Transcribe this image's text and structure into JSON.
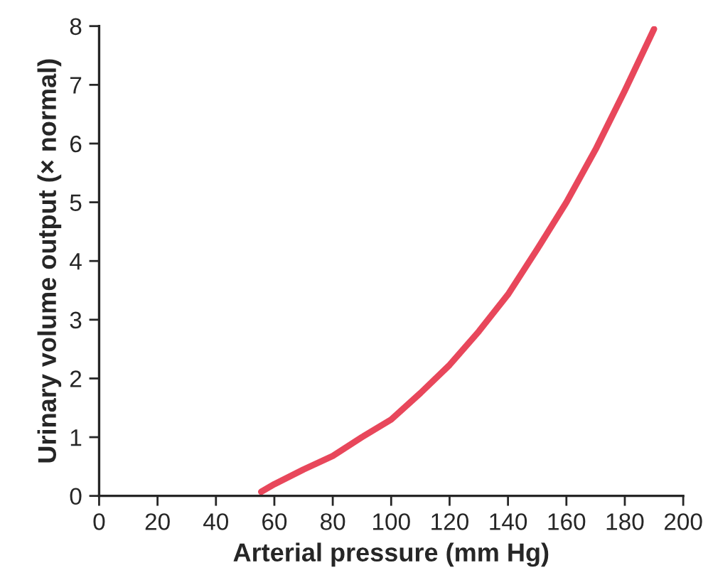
{
  "chart_data": {
    "type": "line",
    "xlabel": "Arterial pressure (mm Hg)",
    "ylabel": "Urinary volume output (× normal)",
    "x": [
      55.5,
      60,
      70,
      80,
      90,
      100,
      110,
      120,
      130,
      140,
      150,
      160,
      170,
      180,
      190
    ],
    "series": [
      {
        "color": "#e8475b",
        "values": [
          0.07,
          0.2,
          0.45,
          0.68,
          1.0,
          1.3,
          1.75,
          2.23,
          2.8,
          3.43,
          4.2,
          5.0,
          5.9,
          6.9,
          7.95
        ]
      }
    ],
    "xlim": [
      0,
      200
    ],
    "xticks": [
      0,
      20,
      40,
      60,
      80,
      100,
      120,
      140,
      160,
      180,
      200
    ],
    "ylim": [
      0,
      8
    ],
    "yticks": [
      0,
      1,
      2,
      3,
      4,
      5,
      6,
      7,
      8
    ],
    "grid": false,
    "legend": false,
    "marker": "none",
    "line_style": "solid"
  }
}
